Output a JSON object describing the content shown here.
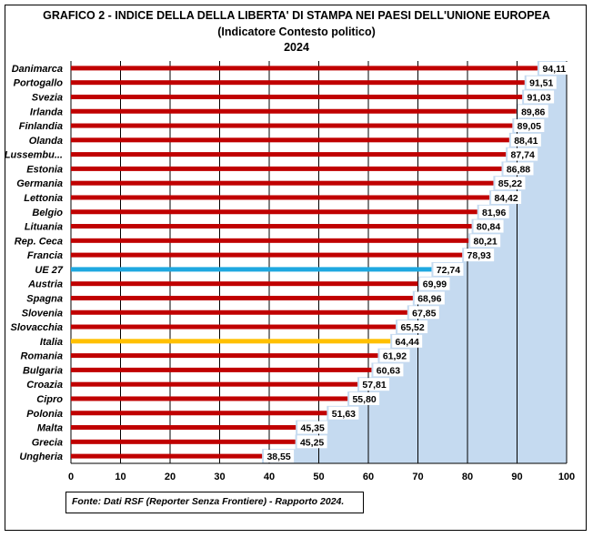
{
  "title_lines": [
    "GRAFICO 2 - INDICE DELLA DELLA LIBERTA' DI STAMPA NEI PAESI DELL'UNIONE EUROPEA",
    "(Indicatore Contesto politico)",
    "2024"
  ],
  "source": "Fonte: Dati RSF (Reporter Senza Frontiere) - Rapporto 2024.",
  "colors": {
    "bar": "#c00000",
    "eu_bar": "#1fa8e0",
    "italy_bar": "#ffc000",
    "plot_bg": "#c5daf0",
    "grid": "#000000"
  },
  "chart_data": {
    "type": "bar",
    "orientation": "horizontal",
    "categories": [
      "Danimarca",
      "Portogallo",
      "Svezia",
      "Irlanda",
      "Finlandia",
      "Olanda",
      "Lussembu...",
      "Estonia",
      "Germania",
      "Lettonia",
      "Belgio",
      "Lituania",
      "Rep. Ceca",
      "Francia",
      "UE 27",
      "Austria",
      "Spagna",
      "Slovenia",
      "Slovacchia",
      "Italia",
      "Romania",
      "Bulgaria",
      "Croazia",
      "Cipro",
      "Polonia",
      "Malta",
      "Grecia",
      "Ungheria"
    ],
    "values": [
      94.11,
      91.51,
      91.03,
      89.86,
      89.05,
      88.41,
      87.74,
      86.88,
      85.22,
      84.42,
      81.96,
      80.84,
      80.21,
      78.93,
      72.74,
      69.99,
      68.96,
      67.85,
      65.52,
      64.44,
      61.92,
      60.63,
      57.81,
      55.8,
      51.63,
      45.35,
      45.25,
      38.55
    ],
    "labels": [
      "94,11",
      "91,51",
      "91,03",
      "89,86",
      "89,05",
      "88,41",
      "87,74",
      "86,88",
      "85,22",
      "84,42",
      "81,96",
      "80,84",
      "80,21",
      "78,93",
      "72,74",
      "69,99",
      "68,96",
      "67,85",
      "65,52",
      "64,44",
      "61,92",
      "60,63",
      "57,81",
      "55,80",
      "51,63",
      "45,35",
      "45,25",
      "38,55"
    ],
    "highlight": {
      "UE 27": "eu_bar",
      "Italia": "italy_bar"
    },
    "xlim": [
      0,
      100
    ],
    "xticks": [
      0,
      10,
      20,
      30,
      40,
      50,
      60,
      70,
      80,
      90,
      100
    ],
    "grid": "vertical",
    "legend": "none"
  }
}
